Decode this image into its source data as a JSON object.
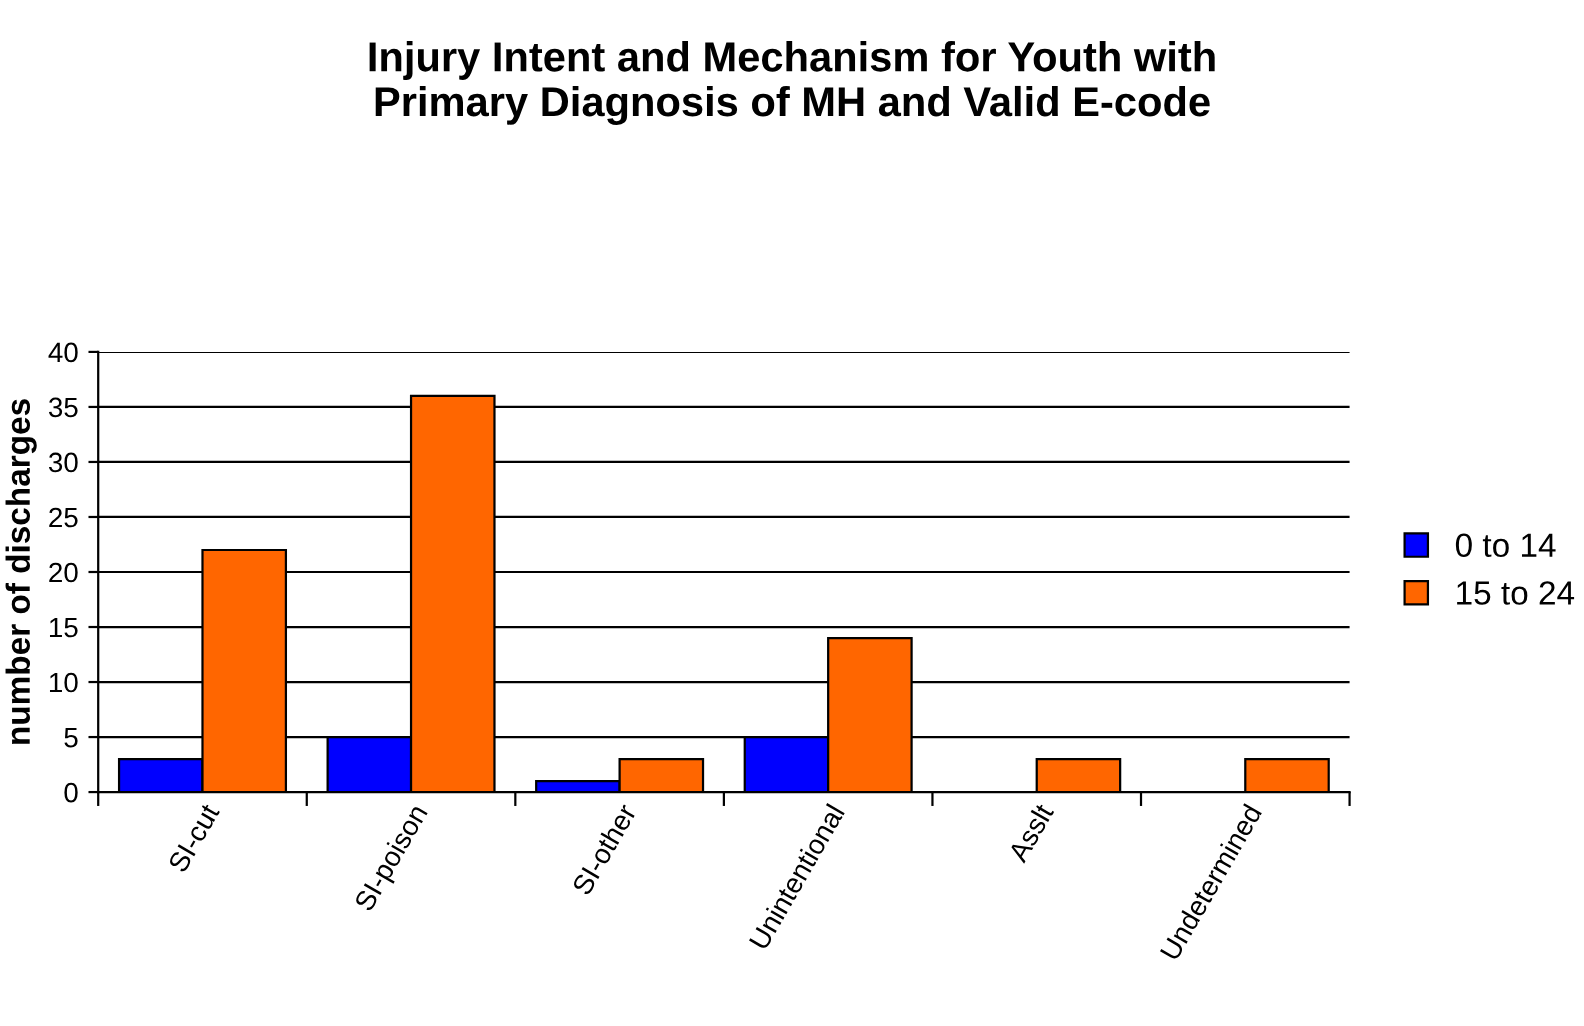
{
  "chart_data": {
    "type": "bar",
    "title": "Injury Intent and Mechanism for Youth with\nPrimary Diagnosis of MH and Valid E-code",
    "ylabel": "number of discharges",
    "categories": [
      "SI-cut",
      "SI-poison",
      "SI-other",
      "Unintentional",
      "Asslt",
      "Undetermined"
    ],
    "series": [
      {
        "name": "0 to 14",
        "color": "#0000ff",
        "values": [
          3,
          5,
          1,
          5,
          null,
          null
        ]
      },
      {
        "name": "15 to 24",
        "color": "#ff6600",
        "values": [
          22,
          36,
          3,
          14,
          3,
          3
        ]
      }
    ],
    "ylim": [
      0,
      40
    ],
    "yticks": [
      0,
      5,
      10,
      15,
      20,
      25,
      30,
      35,
      40
    ],
    "grid": "y",
    "legend": "right"
  }
}
